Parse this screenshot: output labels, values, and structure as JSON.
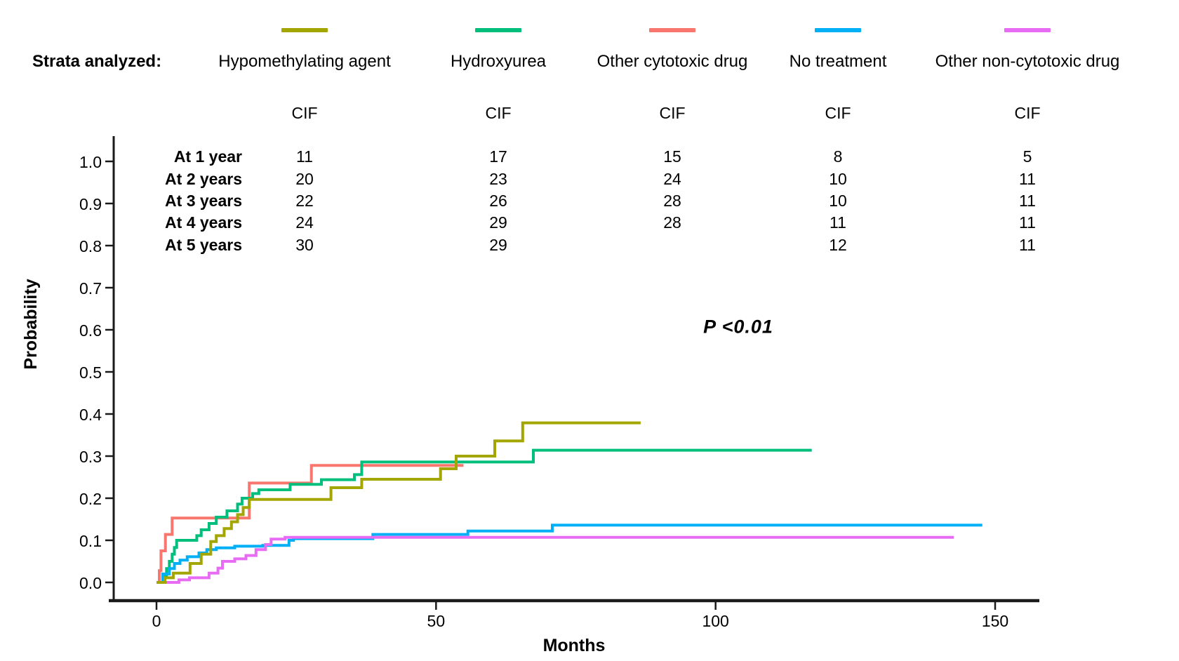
{
  "legend": {
    "title": "Strata analyzed:",
    "items": [
      {
        "label": "Hypomethylating agent",
        "color": "#A3A500"
      },
      {
        "label": "Hydroxyurea",
        "color": "#00BF7D"
      },
      {
        "label": "Other cytotoxic drug",
        "color": "#F8766D"
      },
      {
        "label": "No treatment",
        "color": "#00B0F6"
      },
      {
        "label": "Other non-cytotoxic drug",
        "color": "#E76BF3"
      }
    ]
  },
  "cif_table": {
    "column_header": "CIF",
    "rows": [
      {
        "label": "At 1 year",
        "values": [
          "11",
          "17",
          "15",
          "8",
          "5"
        ]
      },
      {
        "label": "At 2 years",
        "values": [
          "20",
          "23",
          "24",
          "10",
          "11"
        ]
      },
      {
        "label": "At 3 years",
        "values": [
          "22",
          "26",
          "28",
          "10",
          "11"
        ]
      },
      {
        "label": "At 4 years",
        "values": [
          "24",
          "29",
          "28",
          "11",
          "11"
        ]
      },
      {
        "label": "At 5 years",
        "values": [
          "30",
          "29",
          "",
          "12",
          "11"
        ]
      }
    ]
  },
  "annotation": {
    "p_value": "P <0.01"
  },
  "chart_data": {
    "type": "line",
    "subtype": "step-cumulative-incidence",
    "title": "",
    "xlabel": "Months",
    "ylabel": "Probability",
    "xlim": [
      0,
      150
    ],
    "ylim": [
      0,
      1.0
    ],
    "x_ticks": [
      0,
      50,
      100,
      150
    ],
    "y_ticks": [
      "0.0",
      "0.1",
      "0.2",
      "0.3",
      "0.4",
      "0.5",
      "0.6",
      "0.7",
      "0.8",
      "0.9",
      "1.0"
    ],
    "grid": false,
    "legend_position": "top",
    "series": [
      {
        "name": "Other cytotoxic drug",
        "color": "#F8766D",
        "end": 54.9,
        "points": [
          [
            0,
            0
          ],
          [
            0.5,
            0.028
          ],
          [
            0.8,
            0.075
          ],
          [
            1.6,
            0.114
          ],
          [
            2.8,
            0.153
          ],
          [
            16.6,
            0.236
          ],
          [
            27.7,
            0.278
          ]
        ]
      },
      {
        "name": "Hydroxyurea",
        "color": "#00BF7D",
        "end": 117.2,
        "points": [
          [
            0,
            0
          ],
          [
            1.3,
            0.017
          ],
          [
            1.8,
            0.033
          ],
          [
            2.3,
            0.05
          ],
          [
            2.8,
            0.067
          ],
          [
            3.2,
            0.083
          ],
          [
            3.6,
            0.1
          ],
          [
            7.2,
            0.111
          ],
          [
            8,
            0.125
          ],
          [
            9.4,
            0.14
          ],
          [
            10.7,
            0.155
          ],
          [
            12.6,
            0.17
          ],
          [
            14.5,
            0.186
          ],
          [
            15.3,
            0.2
          ],
          [
            17.2,
            0.211
          ],
          [
            18.3,
            0.22
          ],
          [
            23.9,
            0.233
          ],
          [
            29.5,
            0.244
          ],
          [
            35.4,
            0.256
          ],
          [
            36.7,
            0.286
          ],
          [
            67.4,
            0.314
          ]
        ]
      },
      {
        "name": "No treatment",
        "color": "#00B0F6",
        "end": 147.7,
        "points": [
          [
            0,
            0
          ],
          [
            1.1,
            0.02
          ],
          [
            2.3,
            0.033
          ],
          [
            3.2,
            0.045
          ],
          [
            4.2,
            0.053
          ],
          [
            5.5,
            0.061
          ],
          [
            7.6,
            0.07
          ],
          [
            9,
            0.078
          ],
          [
            10.7,
            0.082
          ],
          [
            14,
            0.086
          ],
          [
            19,
            0.088
          ],
          [
            23.7,
            0.1
          ],
          [
            24.5,
            0.104
          ],
          [
            38.7,
            0.114
          ],
          [
            55.7,
            0.122
          ],
          [
            70.8,
            0.136
          ]
        ]
      },
      {
        "name": "Other non-cytotoxic drug",
        "color": "#E76BF3",
        "end": 142.6,
        "points": [
          [
            0,
            0
          ],
          [
            4,
            0.006
          ],
          [
            5.9,
            0.011
          ],
          [
            9.4,
            0.022
          ],
          [
            11,
            0.034
          ],
          [
            11.8,
            0.05
          ],
          [
            14,
            0.056
          ],
          [
            16,
            0.064
          ],
          [
            17.8,
            0.078
          ],
          [
            19.5,
            0.09
          ],
          [
            20.5,
            0.103
          ],
          [
            23,
            0.107
          ]
        ]
      },
      {
        "name": "Hypomethylating agent",
        "color": "#A3A500",
        "end": 86.6,
        "points": [
          [
            0,
            0
          ],
          [
            1.5,
            0.011
          ],
          [
            3,
            0.022
          ],
          [
            6,
            0.045
          ],
          [
            8,
            0.067
          ],
          [
            9.7,
            0.097
          ],
          [
            10.7,
            0.111
          ],
          [
            12.1,
            0.128
          ],
          [
            13.4,
            0.144
          ],
          [
            14.5,
            0.161
          ],
          [
            15.5,
            0.178
          ],
          [
            16.6,
            0.197
          ],
          [
            31.2,
            0.225
          ],
          [
            36.7,
            0.245
          ],
          [
            50.8,
            0.27
          ],
          [
            53.6,
            0.3
          ],
          [
            60.5,
            0.336
          ],
          [
            65.5,
            0.379
          ]
        ]
      }
    ]
  }
}
